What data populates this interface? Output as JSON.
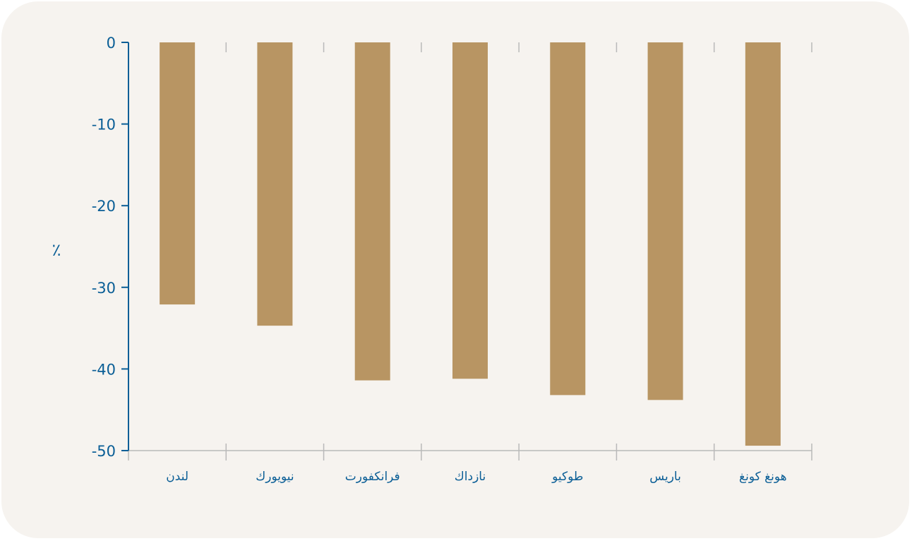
{
  "chart_data": {
    "type": "bar",
    "title": "",
    "xlabel": "",
    "ylabel": "٪",
    "categories": [
      "لندن",
      "نيويورك",
      "فرانكفورت",
      "نازداك",
      "طوكيو",
      "باريس",
      "هونغ كونغ"
    ],
    "values": [
      -32.1,
      -34.7,
      -41.4,
      -41.2,
      -43.2,
      -43.8,
      -49.4
    ],
    "ylim": [
      -50,
      0
    ],
    "yticks": [
      "0",
      "-10",
      "-20",
      "-30",
      "-40",
      "-50"
    ],
    "grid": false,
    "colors": {
      "bar": "#b89563",
      "axis": "#0a5e96",
      "ticks": "#b9b9b9",
      "background": "#f6f3ef"
    }
  }
}
